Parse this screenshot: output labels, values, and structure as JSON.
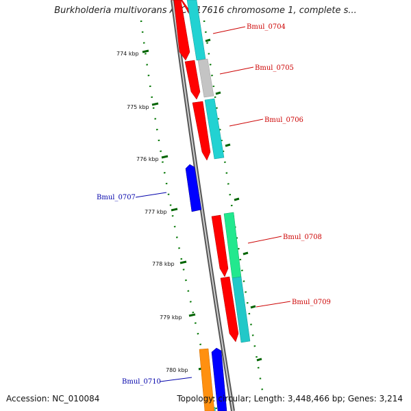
{
  "title": "Burkholderia multivorans ATCC 17616 chromosome 1, complete s...",
  "accession_label": "Accession:",
  "accession": "NC_010084",
  "summary": "Topology: circular; Length: 3,448,466 bp; Genes: 3,214",
  "colors": {
    "forward_cds": "#ff0000",
    "reverse_cds": "#0000ff",
    "cyan_track": "#00c8c8",
    "green_track": "#00e68c",
    "gray_track": "#c0c0c0",
    "orange_gene": "#ff8c00",
    "backbone": "#888888",
    "tick": "#006400",
    "forward_label": "#cc0000",
    "reverse_label": "#0000aa"
  },
  "scale_ticks": [
    "774 kbp",
    "775 kbp",
    "776 kbp",
    "777 kbp",
    "778 kbp",
    "779 kbp",
    "780 kbp"
  ],
  "gene_labels": [
    {
      "name": "Bmul_0704",
      "strand": "forward"
    },
    {
      "name": "Bmul_0705",
      "strand": "forward"
    },
    {
      "name": "Bmul_0706",
      "strand": "forward"
    },
    {
      "name": "Bmul_0707",
      "strand": "reverse"
    },
    {
      "name": "Bmul_0708",
      "strand": "forward"
    },
    {
      "name": "Bmul_0709",
      "strand": "forward"
    },
    {
      "name": "Bmul_0710",
      "strand": "reverse"
    }
  ]
}
